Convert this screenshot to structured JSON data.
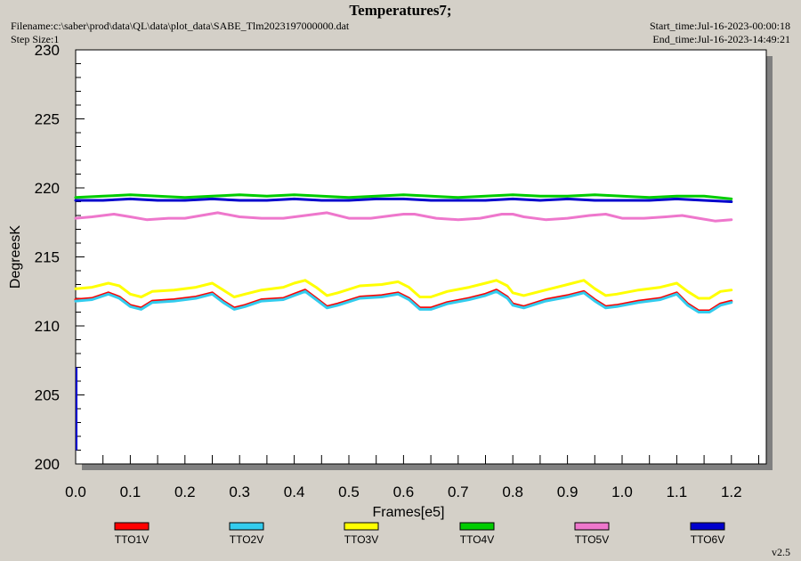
{
  "header": {
    "title": "Temperatures7;",
    "filename": "Filename:c:\\saber\\prod\\data\\QL\\data\\plot_data\\SABE_Tlm2023197000000.dat",
    "step_size": "Step Size:1",
    "start_time": "Start_time:Jul-16-2023-00:00:18",
    "end_time": "End_time:Jul-16-2023-14:49:21"
  },
  "version": "v2.5",
  "chart_data": {
    "type": "line",
    "xlabel": "Frames[e5]",
    "ylabel": "DegreesK",
    "xlim": [
      0.0,
      1.27
    ],
    "ylim": [
      200,
      230
    ],
    "xticks": [
      "0.0",
      "0.1",
      "0.2",
      "0.3",
      "0.4",
      "0.5",
      "0.6",
      "0.7",
      "0.8",
      "0.9",
      "1.0",
      "1.1",
      "1.2"
    ],
    "yticks": [
      "200",
      "205",
      "210",
      "215",
      "220",
      "225",
      "230"
    ],
    "grid": false,
    "legend_position": "bottom",
    "series": [
      {
        "name": "TTO1V",
        "color": "#ff0000",
        "x": [
          0,
          0.03,
          0.06,
          0.08,
          0.1,
          0.12,
          0.14,
          0.18,
          0.22,
          0.25,
          0.27,
          0.29,
          0.31,
          0.34,
          0.38,
          0.4,
          0.42,
          0.44,
          0.46,
          0.48,
          0.52,
          0.56,
          0.59,
          0.61,
          0.63,
          0.65,
          0.68,
          0.72,
          0.75,
          0.77,
          0.79,
          0.8,
          0.82,
          0.86,
          0.9,
          0.93,
          0.95,
          0.97,
          0.99,
          1.03,
          1.07,
          1.1,
          1.12,
          1.14,
          1.16,
          1.18,
          1.2
        ],
        "values": [
          211.9,
          212.0,
          212.4,
          212.1,
          211.5,
          211.3,
          211.8,
          211.9,
          212.1,
          212.4,
          211.8,
          211.3,
          211.5,
          211.9,
          212.0,
          212.3,
          212.6,
          212.0,
          211.4,
          211.6,
          212.1,
          212.2,
          212.4,
          212.0,
          211.3,
          211.3,
          211.7,
          212.0,
          212.3,
          212.6,
          212.1,
          211.6,
          211.4,
          211.9,
          212.2,
          212.5,
          211.9,
          211.4,
          211.5,
          211.8,
          212.0,
          212.4,
          211.6,
          211.1,
          211.1,
          211.6,
          211.8
        ]
      },
      {
        "name": "TTO2V",
        "color": "#33ccee",
        "x": [
          0,
          0.03,
          0.06,
          0.08,
          0.1,
          0.12,
          0.14,
          0.18,
          0.22,
          0.25,
          0.27,
          0.29,
          0.31,
          0.34,
          0.38,
          0.4,
          0.42,
          0.44,
          0.46,
          0.48,
          0.52,
          0.56,
          0.59,
          0.61,
          0.63,
          0.65,
          0.68,
          0.72,
          0.75,
          0.77,
          0.79,
          0.8,
          0.82,
          0.86,
          0.9,
          0.93,
          0.95,
          0.97,
          0.99,
          1.03,
          1.07,
          1.1,
          1.12,
          1.14,
          1.16,
          1.18,
          1.2
        ],
        "values": [
          211.8,
          211.9,
          212.3,
          212.0,
          211.4,
          211.2,
          211.7,
          211.8,
          212.0,
          212.3,
          211.7,
          211.2,
          211.4,
          211.8,
          211.9,
          212.2,
          212.5,
          211.9,
          211.3,
          211.5,
          212.0,
          212.1,
          212.3,
          211.9,
          211.2,
          211.2,
          211.6,
          211.9,
          212.2,
          212.5,
          212.0,
          211.5,
          211.3,
          211.8,
          212.1,
          212.4,
          211.8,
          211.3,
          211.4,
          211.7,
          211.9,
          212.3,
          211.5,
          211.0,
          211.0,
          211.5,
          211.7
        ]
      },
      {
        "name": "TTO3V",
        "color": "#ffff00",
        "x": [
          0,
          0.03,
          0.06,
          0.08,
          0.1,
          0.12,
          0.14,
          0.18,
          0.22,
          0.25,
          0.27,
          0.29,
          0.31,
          0.34,
          0.38,
          0.4,
          0.42,
          0.44,
          0.46,
          0.48,
          0.52,
          0.56,
          0.59,
          0.61,
          0.63,
          0.65,
          0.68,
          0.72,
          0.75,
          0.77,
          0.79,
          0.8,
          0.82,
          0.86,
          0.9,
          0.93,
          0.95,
          0.97,
          0.99,
          1.03,
          1.07,
          1.1,
          1.12,
          1.14,
          1.16,
          1.18,
          1.2
        ],
        "values": [
          212.7,
          212.8,
          213.1,
          212.9,
          212.3,
          212.1,
          212.5,
          212.6,
          212.8,
          213.1,
          212.6,
          212.1,
          212.3,
          212.6,
          212.8,
          213.1,
          213.3,
          212.8,
          212.2,
          212.4,
          212.9,
          213.0,
          213.2,
          212.8,
          212.1,
          212.1,
          212.5,
          212.8,
          213.1,
          213.3,
          212.9,
          212.4,
          212.2,
          212.6,
          213.0,
          213.3,
          212.7,
          212.2,
          212.3,
          212.6,
          212.8,
          213.1,
          212.5,
          212.0,
          212.0,
          212.5,
          212.6
        ]
      },
      {
        "name": "TTO4V",
        "color": "#00cc00",
        "x": [
          0,
          0.05,
          0.1,
          0.15,
          0.2,
          0.25,
          0.3,
          0.35,
          0.4,
          0.45,
          0.5,
          0.55,
          0.6,
          0.65,
          0.7,
          0.75,
          0.8,
          0.85,
          0.9,
          0.95,
          1.0,
          1.05,
          1.1,
          1.15,
          1.2
        ],
        "values": [
          219.3,
          219.4,
          219.5,
          219.4,
          219.3,
          219.4,
          219.5,
          219.4,
          219.5,
          219.4,
          219.3,
          219.4,
          219.5,
          219.4,
          219.3,
          219.4,
          219.5,
          219.4,
          219.4,
          219.5,
          219.4,
          219.3,
          219.4,
          219.4,
          219.2
        ]
      },
      {
        "name": "TTO5V",
        "color": "#ee77cc",
        "x": [
          0,
          0.03,
          0.07,
          0.1,
          0.13,
          0.17,
          0.2,
          0.23,
          0.26,
          0.3,
          0.34,
          0.38,
          0.42,
          0.46,
          0.5,
          0.54,
          0.58,
          0.6,
          0.62,
          0.66,
          0.7,
          0.74,
          0.78,
          0.8,
          0.82,
          0.86,
          0.9,
          0.94,
          0.97,
          1.0,
          1.04,
          1.08,
          1.11,
          1.14,
          1.17,
          1.2
        ],
        "values": [
          217.8,
          217.9,
          218.1,
          217.9,
          217.7,
          217.8,
          217.8,
          218.0,
          218.2,
          217.9,
          217.8,
          217.8,
          218.0,
          218.2,
          217.8,
          217.8,
          218.0,
          218.1,
          218.1,
          217.8,
          217.7,
          217.8,
          218.1,
          218.1,
          217.9,
          217.7,
          217.8,
          218.0,
          218.1,
          217.8,
          217.8,
          217.9,
          218.0,
          217.8,
          217.6,
          217.7
        ]
      },
      {
        "name": "TTO6V",
        "color": "#0000cc",
        "x": [
          0,
          0.05,
          0.1,
          0.15,
          0.2,
          0.25,
          0.3,
          0.35,
          0.4,
          0.45,
          0.5,
          0.55,
          0.6,
          0.65,
          0.7,
          0.75,
          0.8,
          0.85,
          0.9,
          0.95,
          1.0,
          1.05,
          1.1,
          1.15,
          1.2
        ],
        "values": [
          219.1,
          219.1,
          219.2,
          219.1,
          219.1,
          219.2,
          219.1,
          219.1,
          219.2,
          219.1,
          219.1,
          219.2,
          219.2,
          219.1,
          219.1,
          219.1,
          219.2,
          219.1,
          219.2,
          219.1,
          219.1,
          219.1,
          219.2,
          219.1,
          219.0
        ]
      }
    ]
  }
}
